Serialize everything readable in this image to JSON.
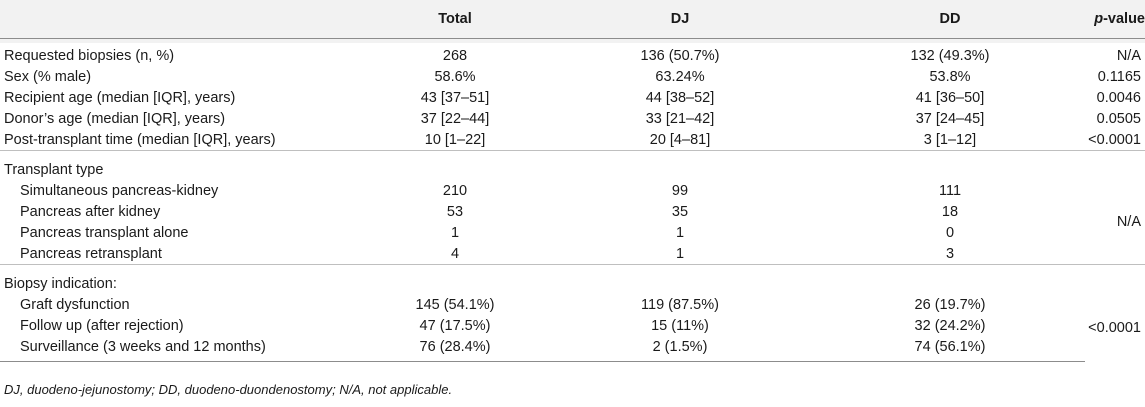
{
  "columns": {
    "label": "",
    "total": "Total",
    "dj": "DJ",
    "dd": "DD",
    "p_italic": "p",
    "p_rest": "-value"
  },
  "summary_rows": [
    {
      "label": "Requested biopsies (n, %)",
      "total": "268",
      "dj": "136 (50.7%)",
      "dd": "132 (49.3%)",
      "p": "N/A"
    },
    {
      "label": "Sex (% male)",
      "total": "58.6%",
      "dj": "63.24%",
      "dd": "53.8%",
      "p": "0.1165"
    },
    {
      "label": "Recipient age (median [IQR], years)",
      "total": "43 [37–51]",
      "dj": "44 [38–52]",
      "dd": "41 [36–50]",
      "p": "0.0046"
    },
    {
      "label": "Donor’s age (median [IQR], years)",
      "total": "37 [22–44]",
      "dj": "33 [21–42]",
      "dd": "37 [24–45]",
      "p": "0.0505"
    },
    {
      "label": "Post-transplant time (median [IQR], years)",
      "total": "10 [1–22]",
      "dj": "20 [4–81]",
      "dd": "3 [1–12]",
      "p": "<0.0001"
    }
  ],
  "transplant_type": {
    "heading": "Transplant type",
    "p": "N/A",
    "rows": [
      {
        "label": "Simultaneous pancreas-kidney",
        "total": "210",
        "dj": "99",
        "dd": "111"
      },
      {
        "label": "Pancreas after kidney",
        "total": "53",
        "dj": "35",
        "dd": "18"
      },
      {
        "label": "Pancreas transplant alone",
        "total": "1",
        "dj": "1",
        "dd": "0"
      },
      {
        "label": "Pancreas retransplant",
        "total": "4",
        "dj": "1",
        "dd": "3"
      }
    ]
  },
  "biopsy_indication": {
    "heading": "Biopsy indication:",
    "p": "<0.0001",
    "rows": [
      {
        "label": "Graft dysfunction",
        "total": "145 (54.1%)",
        "dj": "119 (87.5%)",
        "dd": "26 (19.7%)"
      },
      {
        "label": "Follow up (after rejection)",
        "total": "47 (17.5%)",
        "dj": "15 (11%)",
        "dd": "32 (24.2%)"
      },
      {
        "label": "Surveillance (3 weeks and 12 months)",
        "total": "76 (28.4%)",
        "dj": "2 (1.5%)",
        "dd": "74 (56.1%)"
      }
    ]
  },
  "footnote": "DJ, duodeno-jejunostomy; DD, duodeno-duondenostomy; N/A, not applicable."
}
